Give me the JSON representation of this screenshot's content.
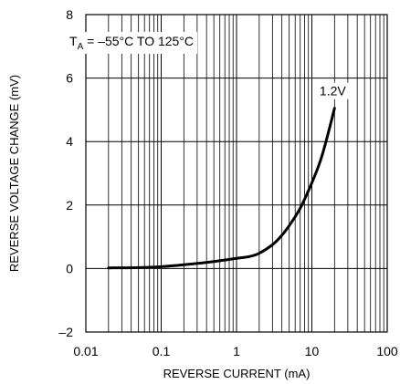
{
  "chart_data": {
    "type": "line",
    "title": "",
    "xlabel": "REVERSE CURRENT (mA)",
    "ylabel": "REVERSE VOLTAGE CHANGE (mV)",
    "xscale": "log",
    "xlim": [
      0.01,
      100
    ],
    "ylim": [
      -2,
      8
    ],
    "x_ticks": [
      0.01,
      0.1,
      1,
      10,
      100
    ],
    "x_tick_labels": [
      "0.01",
      "0.1",
      "1",
      "10",
      "100"
    ],
    "y_ticks": [
      -2,
      0,
      2,
      4,
      6,
      8
    ],
    "y_tick_labels": [
      "–2",
      "0",
      "2",
      "4",
      "6",
      "8"
    ],
    "grid": true,
    "annotations": {
      "condition_prefix": "T",
      "condition_subscript": "A",
      "condition_rest": " = –55°C TO 125°C"
    },
    "series": [
      {
        "name": "1.2V",
        "x": [
          0.02,
          0.05,
          0.1,
          0.2,
          0.5,
          1,
          1.5,
          2,
          3,
          4,
          5,
          7,
          10,
          13,
          16,
          20
        ],
        "y": [
          0.02,
          0.03,
          0.06,
          0.12,
          0.22,
          0.32,
          0.38,
          0.48,
          0.75,
          1.05,
          1.35,
          1.9,
          2.7,
          3.4,
          4.15,
          5.05
        ]
      }
    ]
  }
}
